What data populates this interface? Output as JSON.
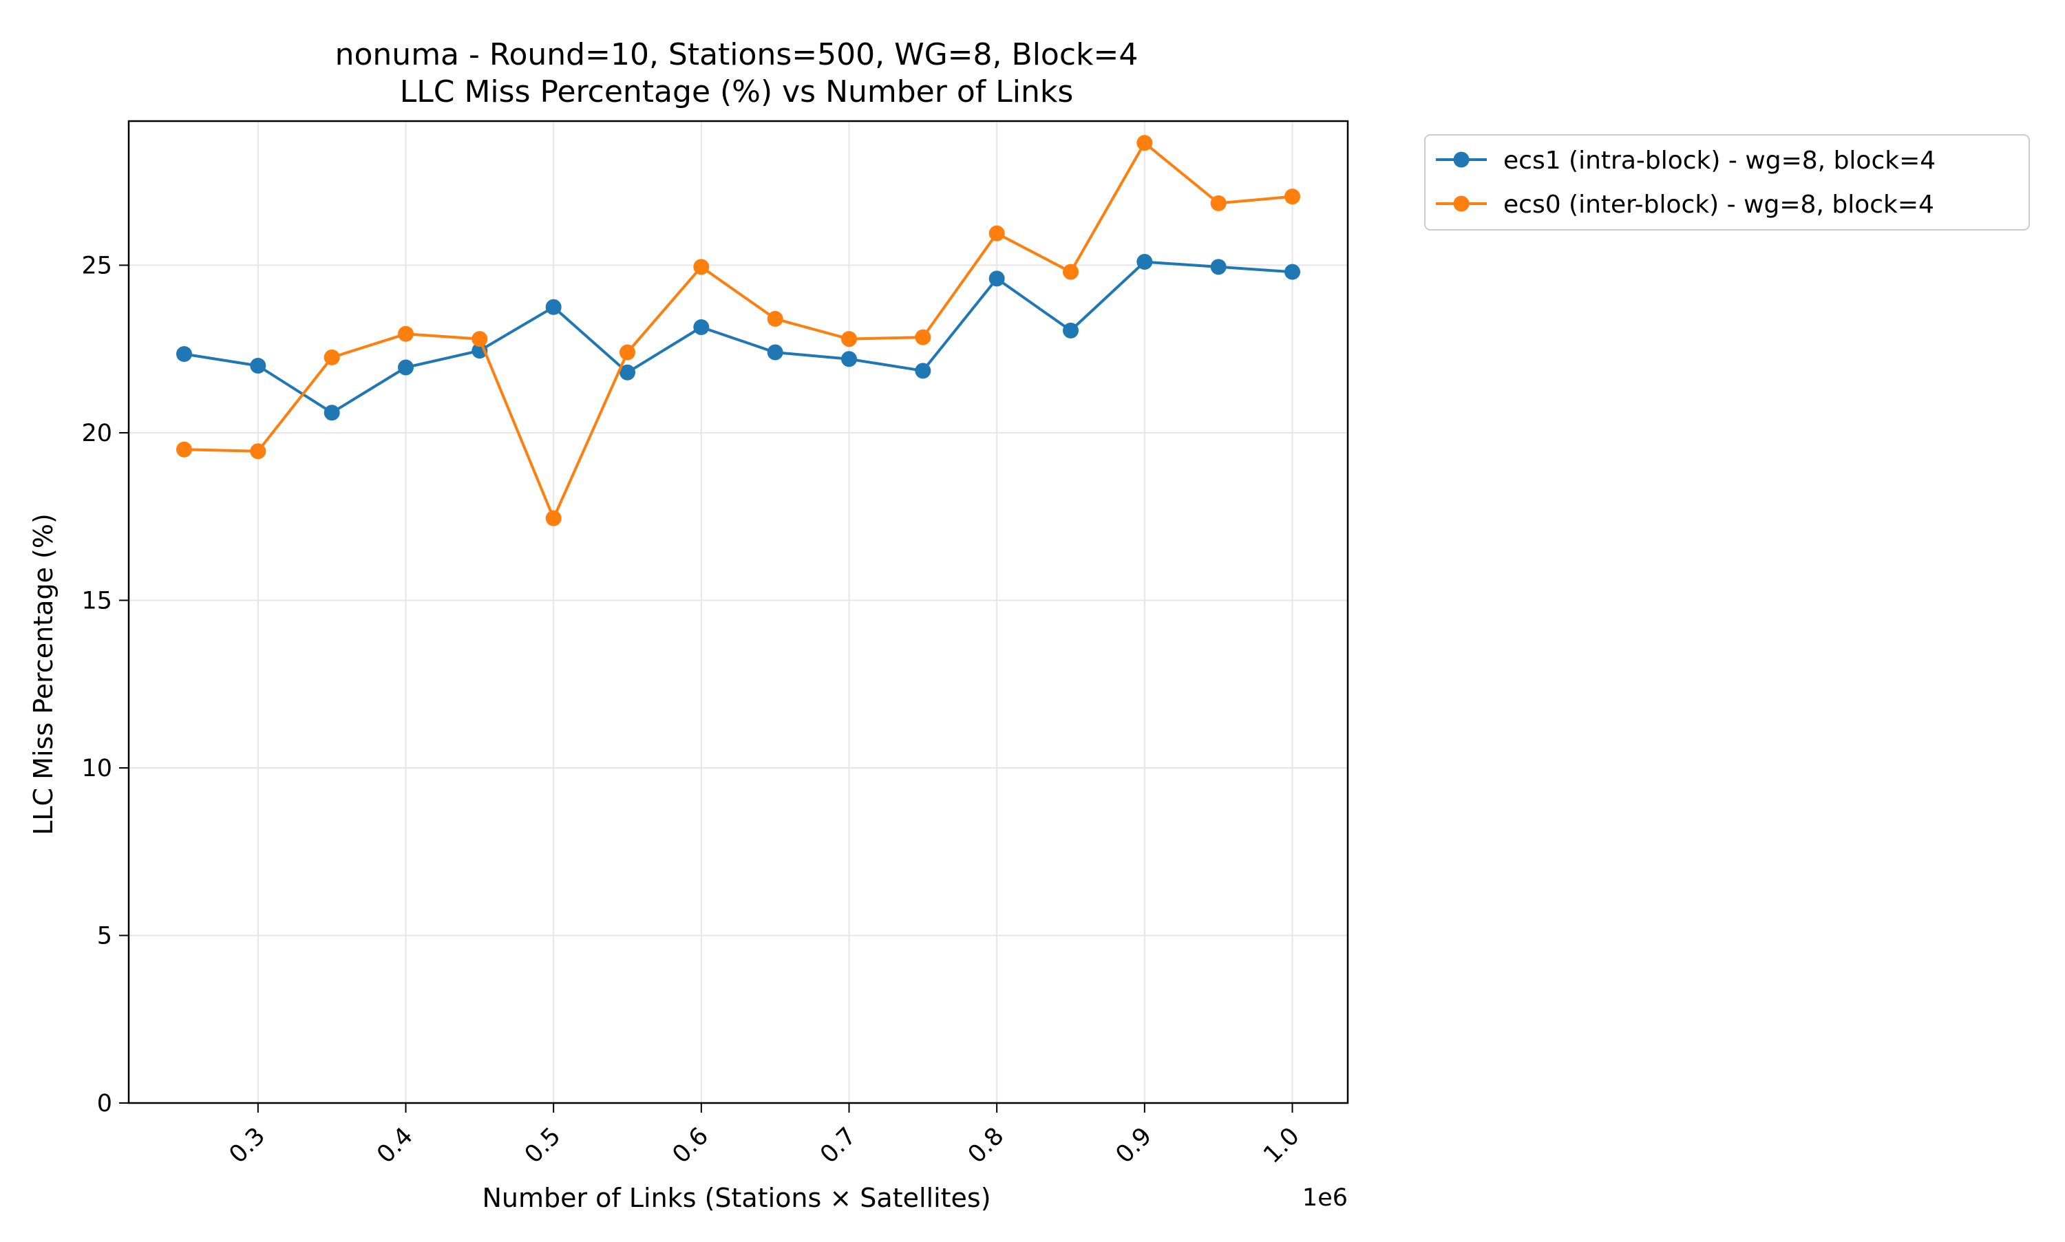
{
  "chart_data": {
    "type": "line",
    "title": "nonuma - Round=10, Stations=500, WG=8, Block=4",
    "subtitle": "LLC Miss Percentage (%) vs Number of Links",
    "xlabel": "Number of Links (Stations × Satellites)",
    "ylabel": "LLC Miss Percentage (%)",
    "x_offset_label": "1e6",
    "xlim": [
      0.2125,
      1.0375
    ],
    "ylim": [
      0,
      29.3
    ],
    "x_scale_factor": 1000000,
    "xticks": [
      0.3,
      0.4,
      0.5,
      0.6,
      0.7,
      0.8,
      0.9,
      1.0
    ],
    "xtick_labels": [
      "0.3",
      "0.4",
      "0.5",
      "0.6",
      "0.7",
      "0.8",
      "0.9",
      "1.0"
    ],
    "yticks": [
      0,
      5,
      10,
      15,
      20,
      25
    ],
    "ytick_labels": [
      "0",
      "5",
      "10",
      "15",
      "20",
      "25"
    ],
    "grid": true,
    "legend_position": "outside-top-right",
    "x": [
      0.25,
      0.3,
      0.35,
      0.4,
      0.45,
      0.5,
      0.55,
      0.6,
      0.65,
      0.7,
      0.75,
      0.8,
      0.85,
      0.9,
      0.95,
      1.0
    ],
    "series": [
      {
        "name": "ecs1 (intra-block) - wg=8, block=4",
        "color": "#1f77b4",
        "marker": "circle",
        "values": [
          22.35,
          22.0,
          20.6,
          21.95,
          22.45,
          23.75,
          21.8,
          23.15,
          22.4,
          22.2,
          21.85,
          24.6,
          23.05,
          25.1,
          24.95,
          24.8
        ]
      },
      {
        "name": "ecs0 (inter-block) - wg=8, block=4",
        "color": "#ff7f0e",
        "marker": "circle",
        "values": [
          19.5,
          19.45,
          22.25,
          22.95,
          22.8,
          17.45,
          22.4,
          24.95,
          23.4,
          22.8,
          22.85,
          25.95,
          24.8,
          28.65,
          26.85,
          27.05
        ]
      }
    ]
  }
}
